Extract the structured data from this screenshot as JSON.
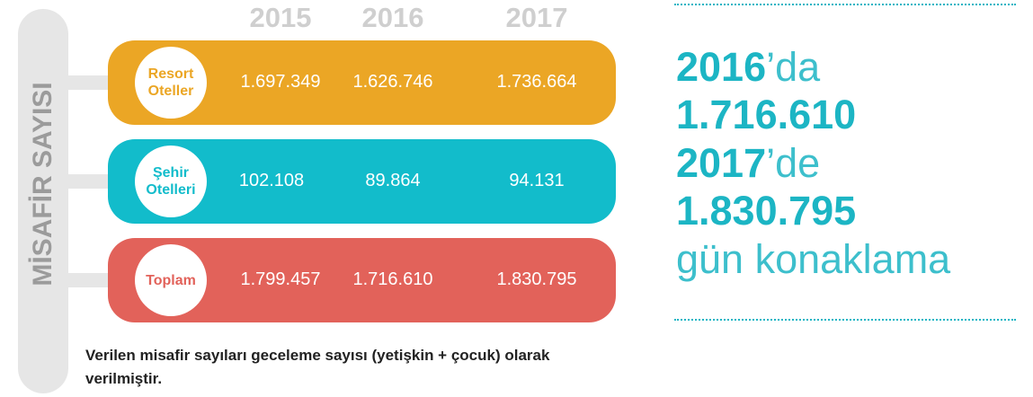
{
  "side_label": "MİSAFİR SAYISI",
  "years": [
    "2015",
    "2016",
    "2017"
  ],
  "rows": [
    {
      "label": [
        "Resort",
        "Oteller"
      ],
      "values": [
        "1.697.349",
        "1.626.746",
        "1.736.664"
      ]
    },
    {
      "label": [
        "Şehir",
        "Otelleri"
      ],
      "values": [
        "102.108",
        "89.864",
        "94.131"
      ]
    },
    {
      "label": [
        "Toplam"
      ],
      "values": [
        "1.799.457",
        "1.716.610",
        "1.830.795"
      ]
    }
  ],
  "note": "Verilen misafir sayıları geceleme sayısı (yetişkin + çocuk) olarak verilmiştir.",
  "callout": {
    "year1": "2016",
    "suffix1": "’da",
    "value1": "1.716.610",
    "year2": "2017",
    "suffix2": "’de",
    "value2": "1.830.795",
    "tail": "gün konaklama"
  }
}
